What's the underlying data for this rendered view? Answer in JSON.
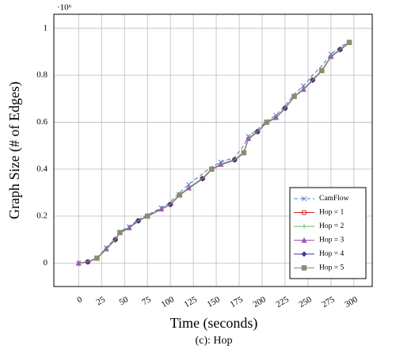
{
  "chart_data": {
    "type": "line",
    "y_label": "Graph Size (# of Edges)",
    "x_label": "Time (seconds)",
    "caption": "(c): Hop",
    "y_multiplier": "·10⁶",
    "x": [
      0,
      10,
      20,
      30,
      40,
      45,
      55,
      65,
      75,
      90,
      100,
      110,
      120,
      135,
      145,
      155,
      170,
      180,
      185,
      195,
      205,
      215,
      225,
      235,
      245,
      255,
      265,
      275,
      285,
      295
    ],
    "series": [
      {
        "name": "CamFlow",
        "color": "#5a7fc0",
        "marker": "x",
        "dashed": true,
        "values": [
          0,
          0.006,
          0.022,
          0.065,
          0.105,
          0.135,
          0.155,
          0.185,
          0.205,
          0.235,
          0.26,
          0.3,
          0.335,
          0.38,
          0.41,
          0.43,
          0.45,
          0.5,
          0.54,
          0.57,
          0.605,
          0.63,
          0.67,
          0.72,
          0.755,
          0.8,
          0.84,
          0.89,
          0.92,
          0.945
        ]
      },
      {
        "name": "Hop = 1",
        "color": "#d62728",
        "marker": "circle",
        "values": [
          0,
          0.005,
          0.02,
          0.06,
          0.1,
          0.13,
          0.15,
          0.18,
          0.2,
          0.23,
          0.25,
          0.29,
          0.32,
          0.36,
          0.4,
          0.42,
          0.44,
          0.47,
          0.53,
          0.56,
          0.6,
          0.62,
          0.66,
          0.71,
          0.74,
          0.78,
          0.82,
          0.88,
          0.91,
          0.94
        ]
      },
      {
        "name": "Hop = 2",
        "color": "#5cb85c",
        "marker": "plus",
        "values": [
          0,
          0.004,
          0.019,
          0.058,
          0.1,
          0.128,
          0.15,
          0.178,
          0.2,
          0.228,
          0.25,
          0.288,
          0.318,
          0.358,
          0.398,
          0.418,
          0.438,
          0.468,
          0.528,
          0.558,
          0.598,
          0.618,
          0.658,
          0.708,
          0.738,
          0.778,
          0.818,
          0.878,
          0.908,
          0.938
        ]
      },
      {
        "name": "Hop = 3",
        "color": "#9b59b6",
        "marker": "triangle",
        "values": [
          0,
          0.005,
          0.021,
          0.061,
          0.101,
          0.131,
          0.151,
          0.181,
          0.201,
          0.231,
          0.251,
          0.291,
          0.321,
          0.361,
          0.401,
          0.421,
          0.441,
          0.471,
          0.531,
          0.561,
          0.601,
          0.621,
          0.661,
          0.711,
          0.741,
          0.781,
          0.821,
          0.881,
          0.911,
          0.941
        ]
      },
      {
        "name": "Hop = 4",
        "color": "#3b3b8f",
        "marker": "diamond",
        "values": [
          0,
          0.005,
          0.02,
          0.059,
          0.099,
          0.129,
          0.149,
          0.179,
          0.199,
          0.229,
          0.249,
          0.289,
          0.319,
          0.359,
          0.399,
          0.419,
          0.439,
          0.469,
          0.529,
          0.559,
          0.599,
          0.619,
          0.659,
          0.709,
          0.739,
          0.779,
          0.819,
          0.879,
          0.909,
          0.939
        ]
      },
      {
        "name": "Hop = 5",
        "color": "#8c8c70",
        "marker": "square",
        "values": [
          0,
          0.006,
          0.021,
          0.06,
          0.1,
          0.13,
          0.15,
          0.18,
          0.2,
          0.23,
          0.25,
          0.29,
          0.32,
          0.36,
          0.4,
          0.42,
          0.44,
          0.47,
          0.53,
          0.56,
          0.6,
          0.62,
          0.66,
          0.71,
          0.74,
          0.78,
          0.82,
          0.88,
          0.91,
          0.94
        ]
      }
    ],
    "xlim": [
      -27,
      320
    ],
    "ylim": [
      -0.1,
      1.06
    ],
    "xticks": [
      0,
      25,
      50,
      75,
      100,
      125,
      150,
      175,
      200,
      225,
      250,
      275,
      300
    ],
    "yticks": [
      0,
      0.2,
      0.4,
      0.6,
      0.8,
      1
    ],
    "grid": true,
    "legend": "lower right"
  }
}
